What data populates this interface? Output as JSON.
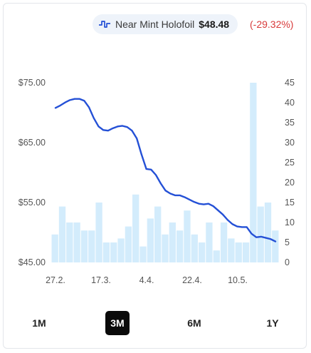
{
  "legend": {
    "series_name": "Near Mint Holofoil",
    "price": "$48.48",
    "change": "(-29.32%)",
    "icon": "line-chart-icon",
    "line_color": "#2450d6",
    "change_color": "#d83a3a"
  },
  "tabs": [
    {
      "label": "1M",
      "active": false
    },
    {
      "label": "3M",
      "active": true
    },
    {
      "label": "6M",
      "active": false
    },
    {
      "label": "1Y",
      "active": false
    }
  ],
  "chart_data": {
    "type": "line",
    "x_tick_labels": [
      "27.2.",
      "17.3.",
      "4.4.",
      "22.4.",
      "10.5."
    ],
    "y_left": {
      "ticks": [
        "$75.00",
        "$65.00",
        "$55.00",
        "$45.00"
      ],
      "range": [
        45,
        75
      ]
    },
    "y_right": {
      "ticks": [
        "45",
        "40",
        "35",
        "30",
        "25",
        "20",
        "15",
        "10",
        "5",
        "0"
      ],
      "range": [
        0,
        45
      ]
    },
    "price_series": {
      "values": [
        70.8,
        71.2,
        71.7,
        72.1,
        72.3,
        72.3,
        72.0,
        70.9,
        69.1,
        67.7,
        67.1,
        67.0,
        67.4,
        67.7,
        67.8,
        67.6,
        67.0,
        65.7,
        63.0,
        60.6,
        60.5,
        59.6,
        58.2,
        57.0,
        56.5,
        56.2,
        56.2,
        55.9,
        55.5,
        55.1,
        54.8,
        54.7,
        54.8,
        54.4,
        53.7,
        53.0,
        52.1,
        51.4,
        51.0,
        50.9,
        50.9,
        49.8,
        49.2,
        49.3,
        49.1,
        48.9,
        48.5
      ],
      "color": "#2450d6"
    },
    "volume_series": {
      "values": [
        7,
        14,
        10,
        10,
        8,
        8,
        15,
        5,
        5,
        6,
        9,
        17,
        4,
        11,
        14,
        7,
        10,
        8,
        13,
        7,
        5,
        10,
        3,
        10,
        6,
        5,
        5,
        45,
        14,
        15,
        8
      ],
      "color": "#d3ecfc"
    },
    "grid": false,
    "legend_position": "top-center"
  }
}
